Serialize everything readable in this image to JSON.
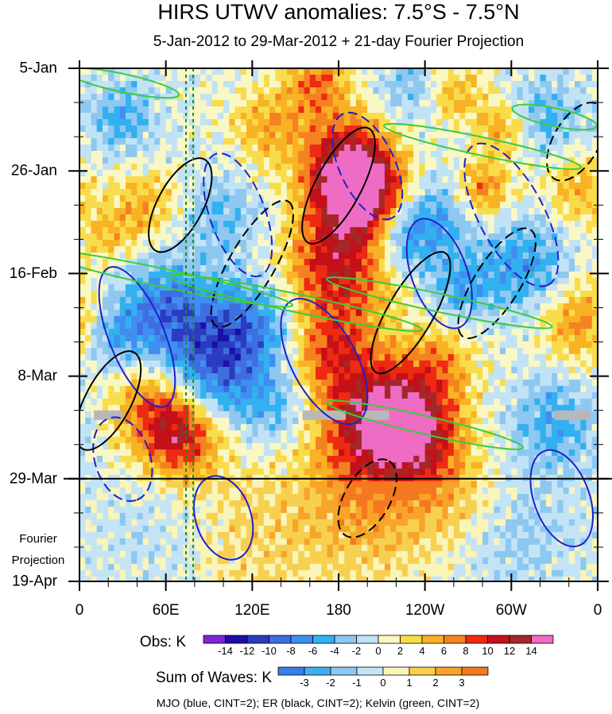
{
  "chart_data": {
    "type": "heatmap",
    "title": "HIRS UTWV anomalies: 7.5°S - 7.5°N",
    "subtitle": "5-Jan-2012 to 29-Mar-2012 + 21-day Fourier Projection",
    "x_ticks": [
      "0",
      "60E",
      "120E",
      "180",
      "120W",
      "60W",
      "0"
    ],
    "x_tick_lon": [
      0,
      60,
      120,
      180,
      240,
      300,
      360
    ],
    "y_ticks": [
      "5-Jan",
      "26-Jan",
      "16-Feb",
      "8-Mar",
      "29-Mar",
      "19-Apr"
    ],
    "y_tick_day": [
      0,
      21,
      42,
      63,
      84,
      105
    ],
    "y_range_days": [
      0,
      105
    ],
    "x_range_lon": [
      0,
      360
    ],
    "obs_end_day": 84,
    "projection_label_line1": "Fourier",
    "projection_label_line2": "Projection",
    "obs_colorbar": {
      "label": "Obs: K",
      "levels": [
        "-14",
        "-12",
        "-10",
        "-8",
        "-6",
        "-4",
        "-2",
        "0",
        "2",
        "4",
        "6",
        "8",
        "10",
        "12",
        "14"
      ],
      "colors": [
        "#7c26d6",
        "#1a10a8",
        "#2a3cc0",
        "#3f6ee0",
        "#3f8ef0",
        "#33b0f0",
        "#8ec8f0",
        "#c2e2f6",
        "#f9f8c4",
        "#f8dc4c",
        "#f8b224",
        "#f58220",
        "#ee2a12",
        "#c41018",
        "#a42828",
        "#ee6cc4"
      ]
    },
    "waves_colorbar": {
      "label": "Sum of Waves: K",
      "levels": [
        "-3",
        "-2",
        "-1",
        "0",
        "1",
        "2",
        "3"
      ],
      "colors": [
        "#3a7ee8",
        "#40aff0",
        "#8cc8f0",
        "#c4e4f6",
        "#f9f4b8",
        "#f8d050",
        "#f8a428",
        "#f57820"
      ]
    },
    "wave_legend": "MJO (blue, CINT=2); ER (black, CINT=2); Kelvin (green, CINT=2)",
    "vertical_lines_lon": [
      74,
      79
    ],
    "anomaly_centers": [
      {
        "lon": 195,
        "day": 25,
        "amp": 15,
        "r": 20
      },
      {
        "lon": 185,
        "day": 19,
        "amp": 10,
        "r": 22
      },
      {
        "lon": 180,
        "day": 40,
        "amp": 11,
        "r": 26
      },
      {
        "lon": 205,
        "day": 72,
        "amp": 12,
        "r": 30
      },
      {
        "lon": 232,
        "day": 74,
        "amp": 10,
        "r": 22
      },
      {
        "lon": 175,
        "day": 57,
        "amp": 7,
        "r": 20
      },
      {
        "lon": 70,
        "day": 75,
        "amp": 11,
        "r": 20
      },
      {
        "lon": 50,
        "day": 68,
        "amp": 6,
        "r": 22
      },
      {
        "lon": 45,
        "day": 28,
        "amp": 5,
        "r": 16
      },
      {
        "lon": 130,
        "day": 12,
        "amp": 5,
        "r": 18
      },
      {
        "lon": 165,
        "day": 3,
        "amp": 7,
        "r": 16
      },
      {
        "lon": 280,
        "day": 25,
        "amp": 7,
        "r": 14
      },
      {
        "lon": 295,
        "day": 12,
        "amp": 6,
        "r": 14
      },
      {
        "lon": 350,
        "day": 52,
        "amp": 7,
        "r": 20
      },
      {
        "lon": 345,
        "day": 25,
        "amp": 5,
        "r": 16
      },
      {
        "lon": 260,
        "day": 5,
        "amp": 5,
        "r": 14
      },
      {
        "lon": 20,
        "day": 34,
        "amp": 4,
        "r": 14
      },
      {
        "lon": 250,
        "day": 60,
        "amp": 5,
        "r": 18
      },
      {
        "lon": 200,
        "day": 92,
        "amp": 4,
        "r": 30
      },
      {
        "lon": 120,
        "day": 95,
        "amp": 3,
        "r": 40
      },
      {
        "lon": 260,
        "day": 88,
        "amp": 4,
        "r": 26
      },
      {
        "lon": 95,
        "day": 62,
        "amp": -9,
        "r": 26
      },
      {
        "lon": 60,
        "day": 50,
        "amp": -8,
        "r": 24
      },
      {
        "lon": 120,
        "day": 52,
        "amp": -6,
        "r": 22
      },
      {
        "lon": 225,
        "day": 35,
        "amp": -6,
        "r": 16
      },
      {
        "lon": 250,
        "day": 30,
        "amp": -5,
        "r": 18
      },
      {
        "lon": 30,
        "day": 10,
        "amp": -5,
        "r": 16
      },
      {
        "lon": 100,
        "day": 30,
        "amp": -4,
        "r": 18
      },
      {
        "lon": 320,
        "day": 10,
        "amp": -5,
        "r": 18
      },
      {
        "lon": 310,
        "day": 40,
        "amp": -6,
        "r": 22
      },
      {
        "lon": 330,
        "day": 72,
        "amp": -5,
        "r": 22
      },
      {
        "lon": 265,
        "day": 45,
        "amp": -5,
        "r": 16
      },
      {
        "lon": 20,
        "day": 55,
        "amp": -5,
        "r": 16
      },
      {
        "lon": 140,
        "day": 70,
        "amp": -4,
        "r": 16
      },
      {
        "lon": 300,
        "day": 95,
        "amp": -3,
        "r": 30
      },
      {
        "lon": 60,
        "day": 95,
        "amp": -2,
        "r": 30
      },
      {
        "lon": 230,
        "day": 4,
        "amp": -4,
        "r": 16
      }
    ],
    "mjo_contours": [
      {
        "lon": 40,
        "day": 55,
        "rx": 52,
        "ry": 5,
        "rot": 68,
        "dash": false
      },
      {
        "lon": 170,
        "day": 60,
        "rx": 48,
        "ry": 6,
        "rot": 62,
        "dash": false
      },
      {
        "lon": 110,
        "day": 30,
        "rx": 45,
        "ry": 5,
        "rot": 70,
        "dash": true
      },
      {
        "lon": 300,
        "day": 30,
        "rx": 55,
        "ry": 6,
        "rot": 62,
        "dash": true
      },
      {
        "lon": 250,
        "day": 42,
        "rx": 40,
        "ry": 5,
        "rot": 70,
        "dash": false
      },
      {
        "lon": 335,
        "day": 88,
        "rx": 35,
        "ry": 5,
        "rot": 70,
        "dash": false
      },
      {
        "lon": 30,
        "day": 80,
        "rx": 30,
        "ry": 5,
        "rot": 72,
        "dash": true
      },
      {
        "lon": 100,
        "day": 92,
        "rx": 30,
        "ry": 5,
        "rot": 72,
        "dash": false
      },
      {
        "lon": 200,
        "day": 20,
        "rx": 40,
        "ry": 5,
        "rot": 65,
        "dash": true
      }
    ],
    "er_contours": [
      {
        "lon": 180,
        "day": 24,
        "rx": 45,
        "ry": 4,
        "rot": -62,
        "dash": false
      },
      {
        "lon": 120,
        "day": 40,
        "rx": 50,
        "ry": 4,
        "rot": -60,
        "dash": true
      },
      {
        "lon": 230,
        "day": 50,
        "rx": 48,
        "ry": 4,
        "rot": -60,
        "dash": false
      },
      {
        "lon": 290,
        "day": 44,
        "rx": 44,
        "ry": 4,
        "rot": -58,
        "dash": true
      },
      {
        "lon": 20,
        "day": 68,
        "rx": 38,
        "ry": 4,
        "rot": -62,
        "dash": false
      },
      {
        "lon": 70,
        "day": 28,
        "rx": 36,
        "ry": 4,
        "rot": -62,
        "dash": false
      },
      {
        "lon": 200,
        "day": 88,
        "rx": 30,
        "ry": 4,
        "rot": -60,
        "dash": true
      },
      {
        "lon": 345,
        "day": 15,
        "rx": 30,
        "ry": 4,
        "rot": -60,
        "dash": true
      }
    ],
    "kelvin_contours": [
      {
        "lon": 60,
        "day": 43,
        "rx": 90,
        "ry": 1.2,
        "rot": 12
      },
      {
        "lon": 150,
        "day": 48,
        "rx": 90,
        "ry": 1.2,
        "rot": 12
      },
      {
        "lon": 250,
        "day": 48,
        "rx": 80,
        "ry": 1.2,
        "rot": 12
      },
      {
        "lon": 240,
        "day": 73,
        "rx": 70,
        "ry": 1.2,
        "rot": 13
      },
      {
        "lon": 280,
        "day": 16,
        "rx": 70,
        "ry": 1.2,
        "rot": 12
      },
      {
        "lon": 30,
        "day": 3,
        "rx": 40,
        "ry": 1.2,
        "rot": 12
      },
      {
        "lon": 330,
        "day": 10,
        "rx": 30,
        "ry": 1.2,
        "rot": 12
      }
    ],
    "missing_segments": [
      {
        "lon0": 10,
        "lon1": 30,
        "day": 71
      },
      {
        "lon0": 155,
        "lon1": 185,
        "day": 71
      },
      {
        "lon0": 197,
        "lon1": 215,
        "day": 71
      },
      {
        "lon0": 330,
        "lon1": 355,
        "day": 71
      }
    ]
  }
}
